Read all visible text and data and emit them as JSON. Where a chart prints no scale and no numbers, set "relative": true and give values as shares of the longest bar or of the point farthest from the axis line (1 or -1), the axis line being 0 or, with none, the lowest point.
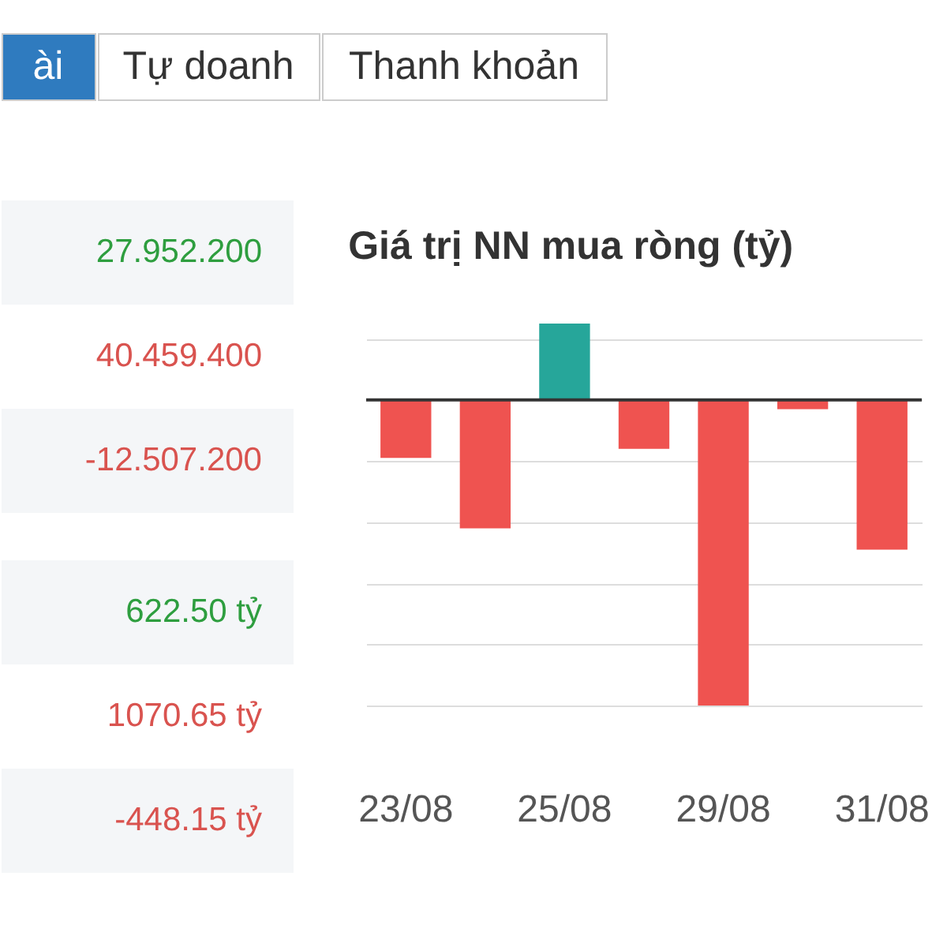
{
  "chart_data": [
    {
      "type": "other",
      "annotations": [
        "ài",
        "Tự doanh",
        "Thanh khoản"
      ],
      "colors": [
        "#2f7bbf",
        "#ffffff",
        "#ffffff"
      ]
    },
    {
      "type": "other",
      "annotations": [
        "27.952.200",
        "40.459.400",
        "-12.507.200",
        "622.50 tỷ",
        "1070.65 tỷ",
        "-448.15 tỷ"
      ],
      "colors": [
        "#2e9e3f",
        "#d9534f",
        "#d9534f",
        "#2e9e3f",
        "#d9534f",
        "#d9534f"
      ]
    },
    {
      "type": "bar",
      "title": "Giá trị NN mua ròng (tỷ)",
      "categories": [
        "23/08",
        null,
        "25/08",
        null,
        "29/08",
        null,
        "31/08"
      ],
      "values": [
        -0.19,
        -0.42,
        0.25,
        -0.16,
        -1,
        -0.03,
        -0.49
      ],
      "colors": [
        "#ef5350",
        "#ef5350",
        "#26a69a",
        "#ef5350",
        "#ef5350",
        "#ef5350",
        "#ef5350"
      ],
      "relative": true,
      "grid": "y"
    }
  ]
}
